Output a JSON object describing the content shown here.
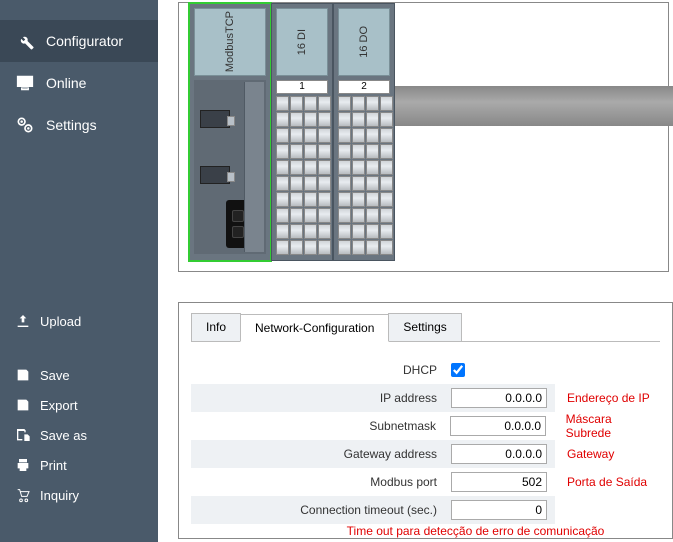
{
  "sidebar": {
    "items": [
      {
        "label": "Configurator"
      },
      {
        "label": "Online"
      },
      {
        "label": "Settings"
      }
    ],
    "actions": [
      {
        "label": "Upload"
      },
      {
        "label": "Save"
      },
      {
        "label": "Export"
      },
      {
        "label": "Save as"
      },
      {
        "label": "Print"
      },
      {
        "label": "Inquiry"
      }
    ]
  },
  "modules": {
    "m0": {
      "label": "ModbusTCP"
    },
    "m1": {
      "label": "16 DI",
      "slot": "1"
    },
    "m2": {
      "label": "16 DO",
      "slot": "2"
    }
  },
  "tabs": {
    "info": "Info",
    "network": "Network-Configuration",
    "settings": "Settings"
  },
  "form": {
    "dhcp": {
      "label": "DHCP",
      "checked": true
    },
    "ip": {
      "label": "IP address",
      "value": "0.0.0.0",
      "note": "Endereço de IP"
    },
    "subnet": {
      "label": "Subnetmask",
      "value": "0.0.0.0",
      "note": "Máscara Subrede"
    },
    "gateway": {
      "label": "Gateway address",
      "value": "0.0.0.0",
      "note": "Gateway"
    },
    "port": {
      "label": "Modbus port",
      "value": "502",
      "note": "Porta de Saída"
    },
    "timeout": {
      "label": "Connection timeout (sec.)",
      "value": "0"
    },
    "timeout_note": "Time out para detecção de erro de comunicação"
  }
}
